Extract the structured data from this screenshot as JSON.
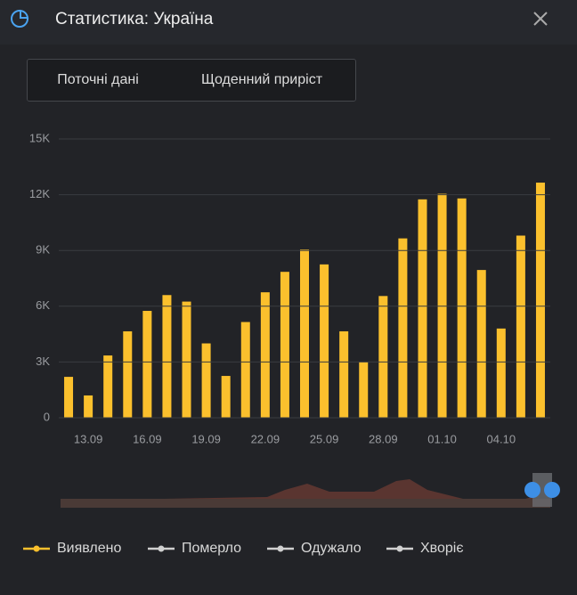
{
  "header": {
    "title": "Статистика: Україна"
  },
  "tabs": [
    "Поточні дані",
    "Щоденний приріст"
  ],
  "active_tab": 1,
  "chart_data": {
    "type": "bar",
    "categories": [
      null,
      "13.09",
      null,
      null,
      "16.09",
      null,
      null,
      "19.09",
      null,
      null,
      "22.09",
      null,
      null,
      "25.09",
      null,
      null,
      "28.09",
      null,
      null,
      "01.10",
      null,
      null,
      "04.10",
      null,
      null
    ],
    "series": [
      {
        "name": "Виявлено",
        "color": "#fbc02d",
        "values": [
          2200,
          1200,
          3350,
          4650,
          5750,
          6600,
          6250,
          4000,
          2250,
          5150,
          6750,
          7850,
          9050,
          8250,
          4650,
          3000,
          6550,
          9650,
          11750,
          12050,
          11800,
          7950,
          4800,
          9800,
          12650
        ]
      }
    ],
    "ylim": [
      0,
      15000
    ],
    "yticks": [
      0,
      {
        "value": 3000,
        "label": "3K"
      },
      {
        "value": 6000,
        "label": "6K"
      },
      {
        "value": 9000,
        "label": "9K"
      },
      {
        "value": 12000,
        "label": "12K"
      },
      {
        "value": 15000,
        "label": "15K"
      }
    ],
    "grid": true,
    "legend_other": [
      {
        "name": "Померло",
        "color": "#d0d0d0"
      },
      {
        "name": "Одужало",
        "color": "#d0d0d0"
      },
      {
        "name": "Хворіє",
        "color": "#d0d0d0"
      }
    ]
  }
}
